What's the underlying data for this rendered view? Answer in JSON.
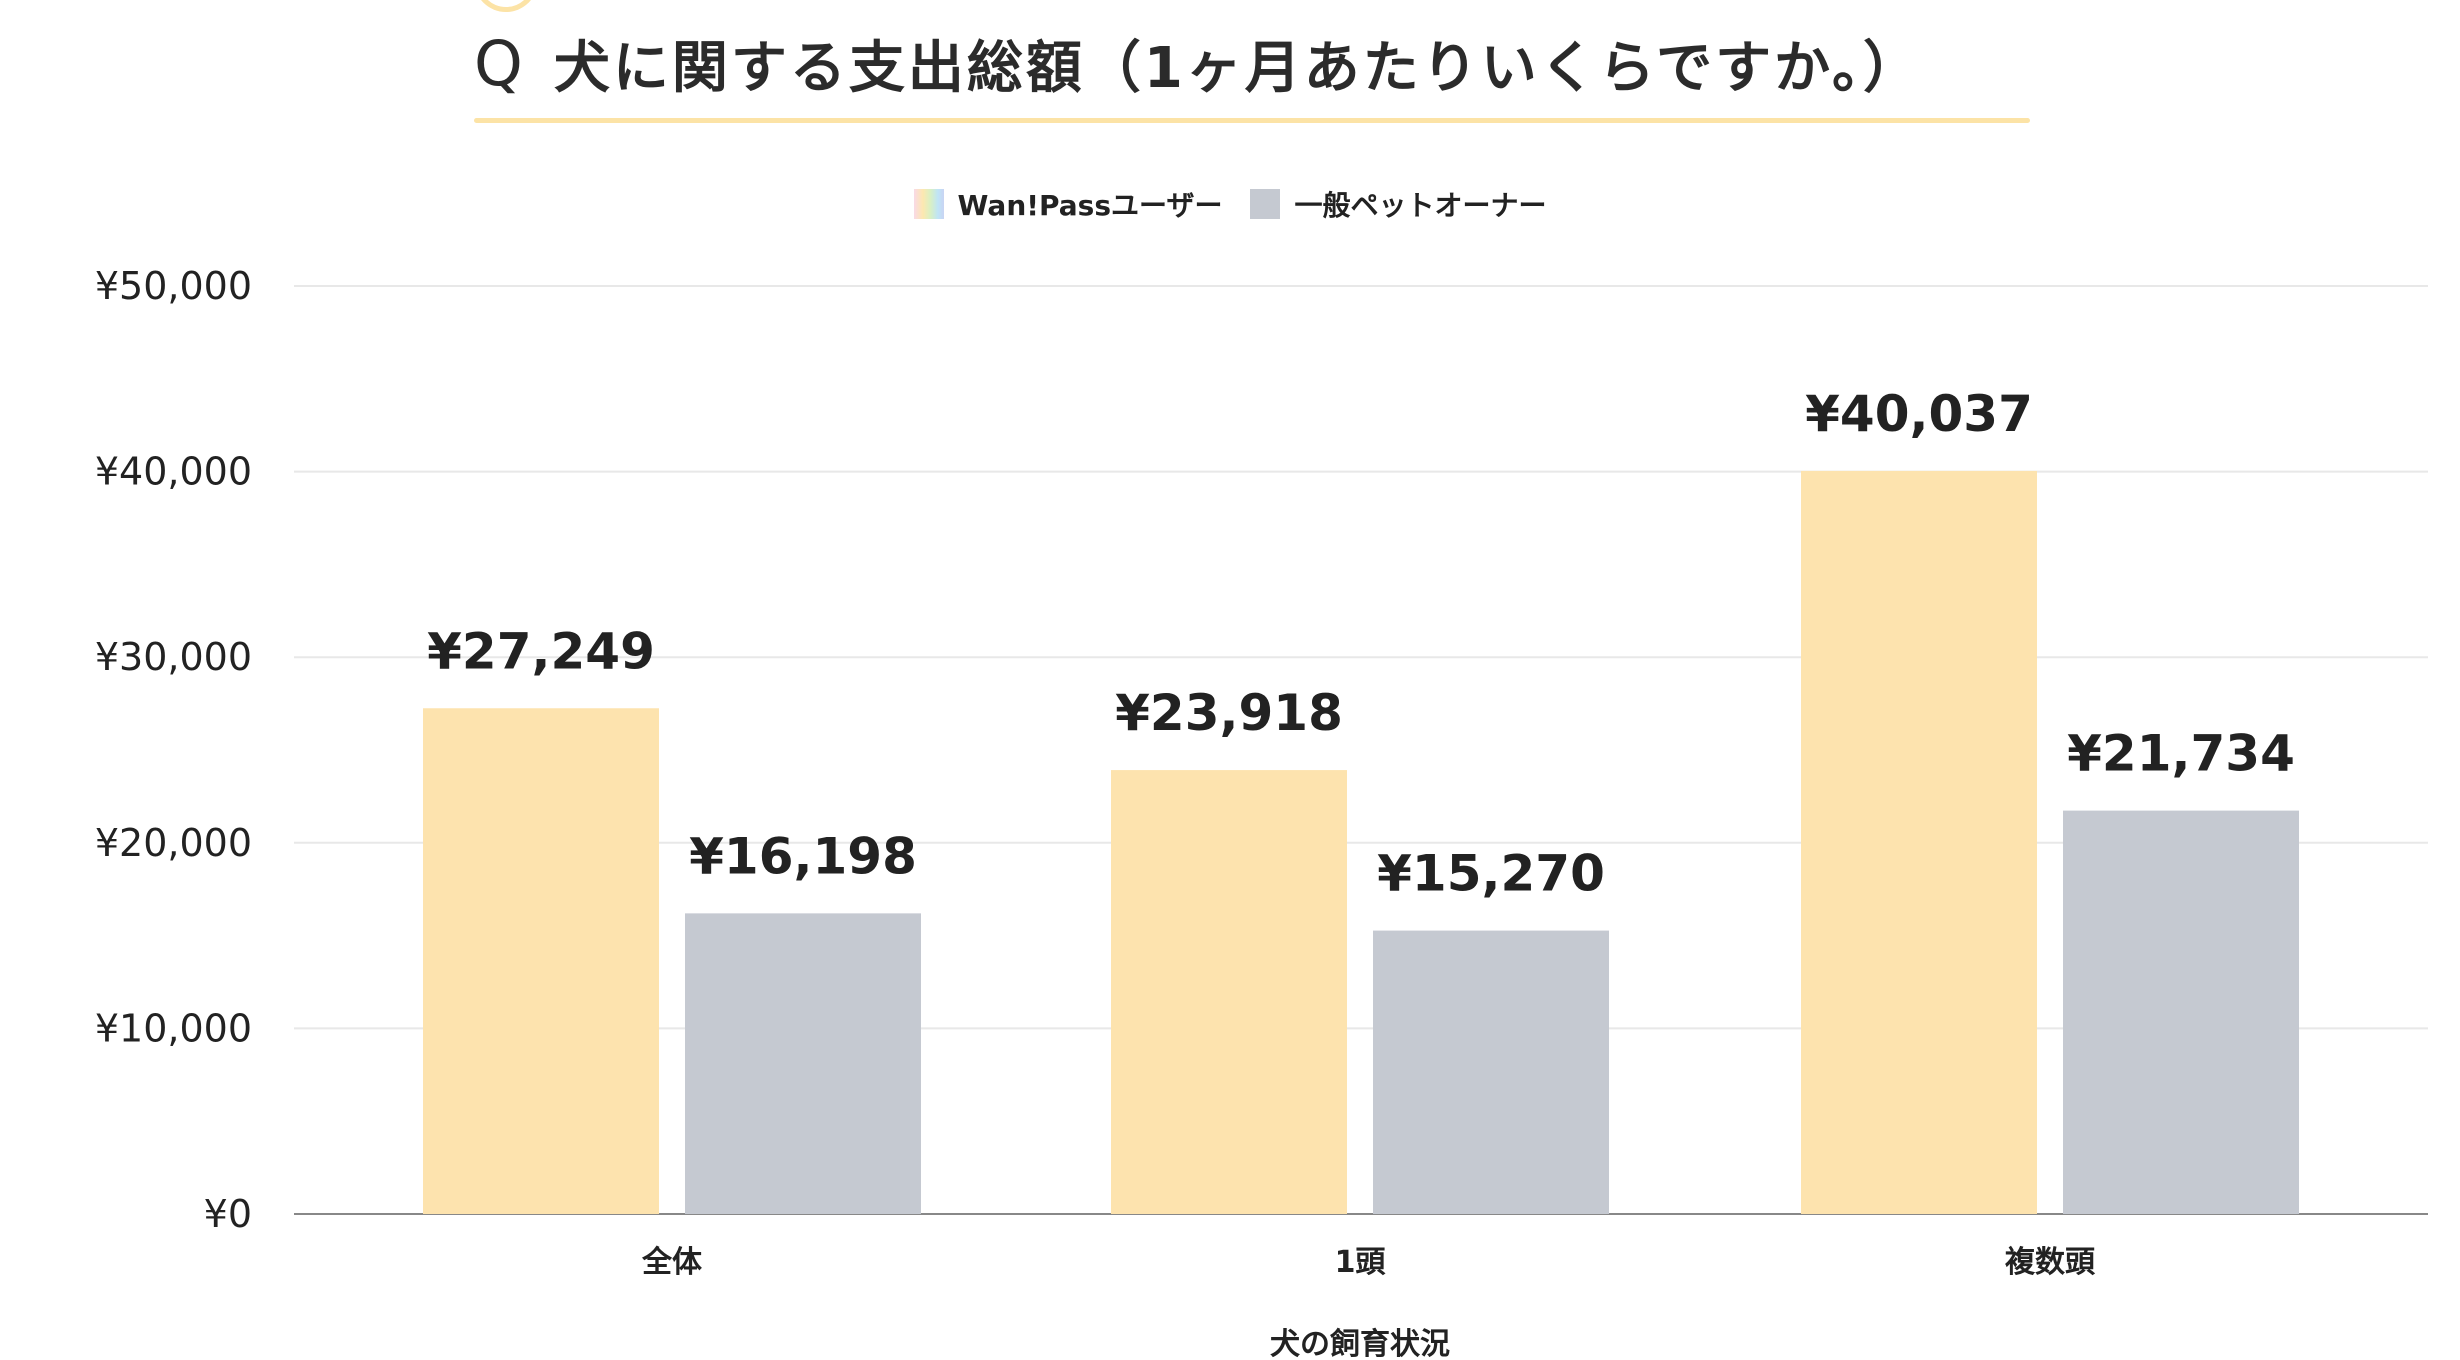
{
  "header": {
    "q_mark": "Q",
    "title": "犬に関する支出総額（1ヶ月あたりいくらですか。）"
  },
  "legend": {
    "items": [
      {
        "label": "Wan!Passユーザー",
        "swatch": "rainbow-gradient"
      },
      {
        "label": "一般ペットオーナー",
        "swatch": "gray"
      }
    ]
  },
  "colors": {
    "wanpass_bar": "#fde3ae",
    "general_bar": "#c5c9d1",
    "grid": "#e8e8e8",
    "axis": "#888888",
    "accent_rule": "#fce3a6",
    "text": "#222222"
  },
  "chart_data": {
    "type": "bar",
    "title": "犬に関する支出総額（1ヶ月あたりいくらですか。）",
    "xlabel": "犬の飼育状況",
    "ylabel": "",
    "categories": [
      "全体",
      "1頭",
      "複数頭"
    ],
    "series": [
      {
        "name": "Wan!Passユーザー",
        "values": [
          27249,
          23918,
          40037
        ]
      },
      {
        "name": "一般ペットオーナー",
        "values": [
          16198,
          15270,
          21734
        ]
      }
    ],
    "value_labels": [
      [
        "¥27,249",
        "¥23,918",
        "¥40,037"
      ],
      [
        "¥16,198",
        "¥15,270",
        "¥21,734"
      ]
    ],
    "ylim": [
      0,
      50000
    ],
    "yticks": [
      0,
      10000,
      20000,
      30000,
      40000,
      50000
    ],
    "ytick_labels": [
      "¥0",
      "¥10,000",
      "¥20,000",
      "¥30,000",
      "¥40,000",
      "¥50,000"
    ],
    "grid": true,
    "legend_position": "top-center"
  }
}
